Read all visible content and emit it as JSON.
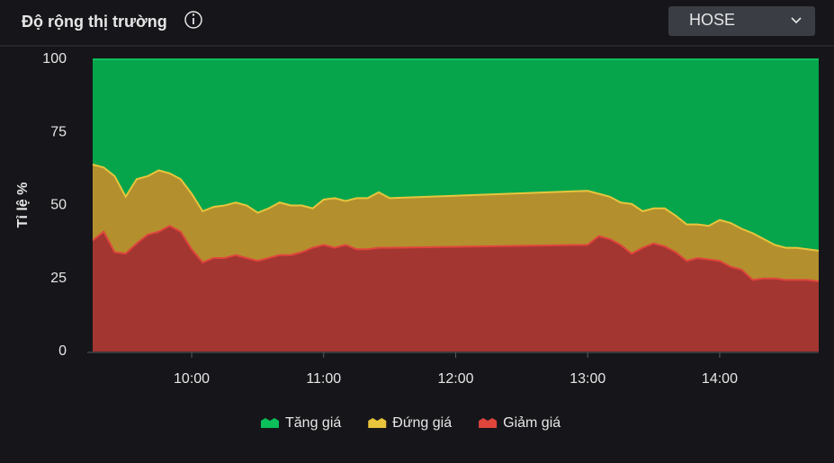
{
  "header": {
    "title": "Độ rộng thị trường",
    "dropdown": "HOSE"
  },
  "chart_data": {
    "type": "stacked-area",
    "ylabel": "Tỉ lệ %",
    "x": [
      "09:15",
      "09:20",
      "09:25",
      "09:30",
      "09:35",
      "09:40",
      "09:45",
      "09:50",
      "09:55",
      "10:00",
      "10:05",
      "10:10",
      "10:15",
      "10:20",
      "10:25",
      "10:30",
      "10:35",
      "10:40",
      "10:45",
      "10:50",
      "10:55",
      "11:00",
      "11:05",
      "11:10",
      "11:15",
      "11:20",
      "11:25",
      "11:30",
      "13:00",
      "13:05",
      "13:10",
      "13:15",
      "13:20",
      "13:25",
      "13:30",
      "13:35",
      "13:40",
      "13:45",
      "13:50",
      "13:55",
      "14:00",
      "14:05",
      "14:10",
      "14:15",
      "14:20",
      "14:25",
      "14:30",
      "14:35",
      "14:40",
      "14:45"
    ],
    "series": [
      {
        "name": "Tăng giá",
        "color": "#06a54c",
        "line_color": "#0bbf5a",
        "values": [
          36,
          37,
          40,
          47,
          41,
          40,
          38,
          39,
          41,
          46,
          52,
          50.5,
          50,
          49,
          50,
          52.5,
          51,
          49,
          50,
          50,
          51,
          48,
          47.5,
          48.5,
          47.5,
          47.5,
          45.5,
          47.5,
          45,
          46,
          47,
          49,
          49.5,
          52,
          51,
          51,
          53.5,
          56.5,
          56.5,
          57,
          55,
          56,
          58,
          59.5,
          61.5,
          63.5,
          64.5,
          64.5,
          65,
          65.5
        ]
      },
      {
        "name": "Đứng giá",
        "color": "#b48f2e",
        "line_color": "#e8c53c",
        "values": [
          26,
          22,
          26,
          19.5,
          22,
          20,
          21,
          18,
          18,
          19,
          17.5,
          17.5,
          18,
          18,
          18,
          16.5,
          17,
          18,
          17,
          16,
          13.5,
          15.5,
          17,
          15,
          17.5,
          17.5,
          19,
          17,
          18.5,
          14.5,
          14.5,
          14.5,
          17,
          12.5,
          12,
          13,
          12.5,
          12.5,
          11.5,
          11.5,
          14,
          15,
          14,
          16,
          13.5,
          11.5,
          11,
          11,
          10.5,
          10.5
        ]
      },
      {
        "name": "Giảm giá",
        "color": "#a33631",
        "line_color": "#e0453c",
        "values": [
          38,
          41,
          34,
          33.5,
          37,
          40,
          41,
          43,
          41,
          35,
          30.5,
          32,
          32,
          33,
          32,
          31,
          32,
          33,
          33,
          34,
          35.5,
          36.5,
          35.5,
          36.5,
          35,
          35,
          35.5,
          35.5,
          36.5,
          39.5,
          38.5,
          36.5,
          33.5,
          35.5,
          37,
          36,
          34,
          31,
          32,
          31.5,
          31,
          29,
          28,
          24.5,
          25,
          25,
          24.5,
          24.5,
          24.5,
          24
        ]
      }
    ],
    "xlim": [
      "09:15",
      "14:45"
    ],
    "xticks": [
      "10:00",
      "11:00",
      "12:00",
      "13:00",
      "14:00"
    ],
    "ylim": [
      0,
      100
    ],
    "yticks": [
      0,
      25,
      50,
      75,
      100
    ]
  }
}
